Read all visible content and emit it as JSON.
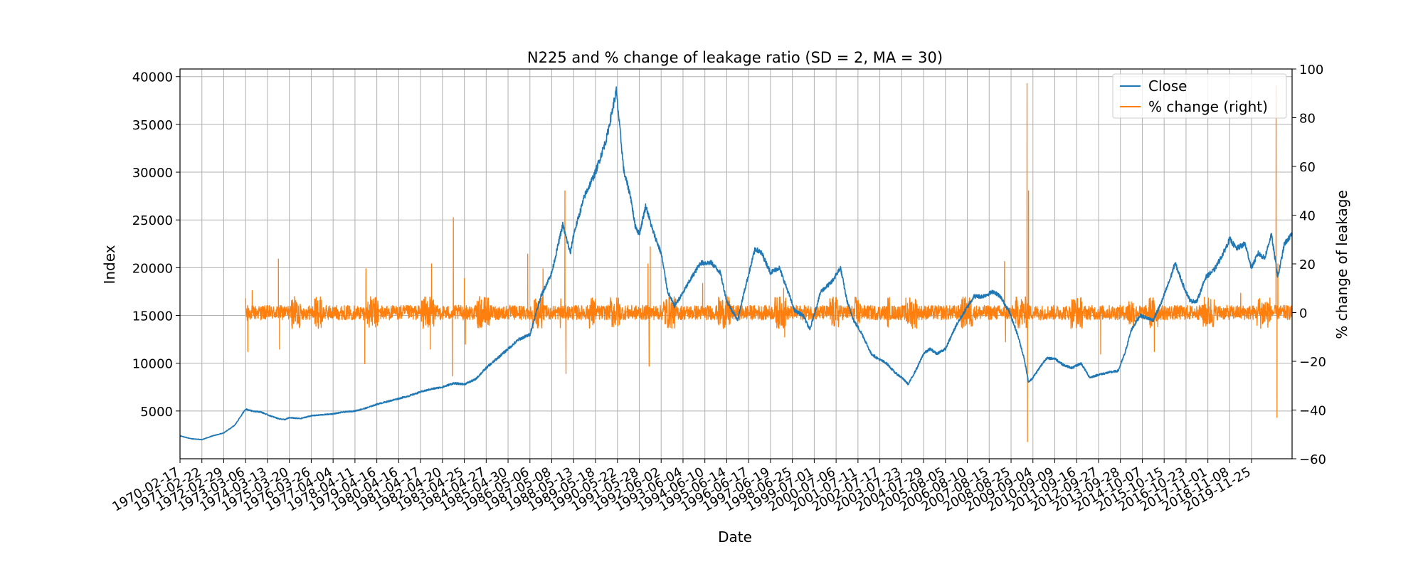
{
  "chart_data": {
    "type": "line",
    "title": "N225 and % change of leakage ratio (SD = 2, MA = 30)",
    "xlabel": "Date",
    "ylabel_left": "Index",
    "ylabel_right": "% change of leakage",
    "grid": true,
    "legend_position": "top-right",
    "x_tick_labels": [
      "1970-02-17",
      "1971-02-22",
      "1972-02-29",
      "1973-03-06",
      "1974-03-13",
      "1975-03-20",
      "1976-03-26",
      "1977-04-04",
      "1978-04-11",
      "1979-04-16",
      "1980-04-16",
      "1981-04-17",
      "1982-04-20",
      "1983-04-25",
      "1984-04-27",
      "1985-04-30",
      "1986-05-06",
      "1987-05-08",
      "1988-05-13",
      "1989-05-18",
      "1990-05-22",
      "1991-05-28",
      "1992-06-02",
      "1993-06-04",
      "1994-06-10",
      "1995-06-14",
      "1996-06-17",
      "1997-06-19",
      "1998-06-25",
      "1999-07-01",
      "2000-07-06",
      "2001-07-11",
      "2002-07-17",
      "2003-07-23",
      "2004-07-29",
      "2005-08-05",
      "2006-08-10",
      "2007-08-15",
      "2008-08-25",
      "2009-09-04",
      "2010-09-09",
      "2011-09-16",
      "2012-09-27",
      "2013-09-28",
      "2014-10-07",
      "2015-10-15",
      "2016-10-23",
      "2017-11-01",
      "2018-11-08",
      "2019-11-25"
    ],
    "y_left_ticks": [
      "5000",
      "10000",
      "15000",
      "20000",
      "25000",
      "30000",
      "35000",
      "40000"
    ],
    "y_right_ticks": [
      "−60",
      "−40",
      "−20",
      "0",
      "20",
      "40",
      "60",
      "80",
      "100"
    ],
    "ylim_left": [
      0,
      40800
    ],
    "ylim_right": [
      -60,
      100
    ],
    "xlim": [
      1970.0,
      2020.85
    ],
    "series": [
      {
        "name": "Close",
        "axis": "left",
        "color": "#1f77b4",
        "x": [
          1970.0,
          1970.5,
          1971.0,
          1971.5,
          1972.0,
          1972.5,
          1973.0,
          1973.3,
          1973.7,
          1974.0,
          1974.5,
          1974.8,
          1975.0,
          1975.5,
          1976.0,
          1976.5,
          1977.0,
          1977.5,
          1978.0,
          1978.5,
          1979.0,
          1979.5,
          1980.0,
          1980.5,
          1981.0,
          1981.5,
          1982.0,
          1982.5,
          1983.0,
          1983.5,
          1984.0,
          1984.5,
          1985.0,
          1985.5,
          1986.0,
          1986.5,
          1987.0,
          1987.5,
          1987.85,
          1988.0,
          1988.5,
          1989.0,
          1989.5,
          1989.95,
          1990.3,
          1990.6,
          1990.8,
          1991.0,
          1991.3,
          1991.6,
          1992.0,
          1992.3,
          1992.6,
          1992.9,
          1993.4,
          1993.8,
          1994.3,
          1994.7,
          1995.0,
          1995.5,
          1995.8,
          1996.3,
          1996.6,
          1997.0,
          1997.4,
          1997.8,
          1998.1,
          1998.5,
          1998.8,
          1999.3,
          1999.8,
          2000.2,
          2000.5,
          2000.8,
          2001.2,
          2001.6,
          2001.9,
          2002.3,
          2002.7,
          2003.0,
          2003.3,
          2003.7,
          2004.0,
          2004.3,
          2004.6,
          2005.0,
          2005.5,
          2005.9,
          2006.3,
          2006.7,
          2007.2,
          2007.5,
          2007.9,
          2008.3,
          2008.6,
          2008.8,
          2009.0,
          2009.3,
          2009.6,
          2010.0,
          2010.4,
          2010.8,
          2011.2,
          2011.6,
          2012.0,
          2012.4,
          2012.9,
          2013.2,
          2013.5,
          2013.9,
          2014.5,
          2014.9,
          2015.3,
          2015.5,
          2015.9,
          2016.2,
          2016.5,
          2016.9,
          2017.3,
          2017.7,
          2018.0,
          2018.3,
          2018.7,
          2018.99,
          2019.3,
          2019.6,
          2019.9,
          2020.2,
          2020.5,
          2020.85
        ],
        "y": [
          2400,
          2100,
          2000,
          2400,
          2700,
          3500,
          5200,
          5000,
          4900,
          4600,
          4200,
          4100,
          4300,
          4200,
          4500,
          4600,
          4700,
          4900,
          5000,
          5300,
          5700,
          6000,
          6300,
          6600,
          7000,
          7300,
          7500,
          7900,
          7800,
          8300,
          9500,
          10500,
          11500,
          12500,
          13000,
          17000,
          19500,
          24500,
          21500,
          23500,
          27500,
          30000,
          33500,
          38500,
          30000,
          27500,
          24500,
          23500,
          26500,
          24000,
          21500,
          17500,
          16000,
          17000,
          19000,
          20500,
          20500,
          19500,
          16500,
          14500,
          17500,
          22000,
          21500,
          19500,
          20000,
          17500,
          15500,
          15000,
          13500,
          17500,
          18500,
          20000,
          16500,
          14500,
          13000,
          11000,
          10500,
          10000,
          9000,
          8500,
          7800,
          9500,
          11000,
          11500,
          11000,
          11500,
          14000,
          15500,
          17000,
          17000,
          17500,
          17000,
          15500,
          13000,
          10500,
          8000,
          8500,
          9500,
          10500,
          10500,
          9800,
          9500,
          10000,
          8500,
          8800,
          9000,
          9200,
          11000,
          13500,
          15000,
          14500,
          16500,
          19000,
          20500,
          18000,
          16500,
          16500,
          19000,
          19800,
          21500,
          23000,
          22000,
          22500,
          20000,
          21500,
          21000,
          23500,
          19000,
          22500,
          23500
        ],
        "style": "line"
      },
      {
        "name": "% change (right)",
        "axis": "right",
        "color": "#ff7f0e",
        "start": 1973.0,
        "noise_level": 3,
        "spikes": [
          {
            "x": 1973.3,
            "y": 9
          },
          {
            "x": 1973.1,
            "y": -16
          },
          {
            "x": 1974.5,
            "y": 22
          },
          {
            "x": 1974.55,
            "y": -15
          },
          {
            "x": 1978.5,
            "y": 18
          },
          {
            "x": 1978.45,
            "y": -21
          },
          {
            "x": 1981.5,
            "y": 20
          },
          {
            "x": 1981.45,
            "y": -15
          },
          {
            "x": 1982.5,
            "y": 39
          },
          {
            "x": 1982.45,
            "y": -26
          },
          {
            "x": 1983.0,
            "y": 14
          },
          {
            "x": 1983.05,
            "y": -13
          },
          {
            "x": 1985.9,
            "y": 24
          },
          {
            "x": 1986.6,
            "y": 18
          },
          {
            "x": 1987.6,
            "y": 50
          },
          {
            "x": 1987.65,
            "y": -25
          },
          {
            "x": 1991.4,
            "y": 20
          },
          {
            "x": 1991.45,
            "y": -22
          },
          {
            "x": 1991.5,
            "y": 27
          },
          {
            "x": 1993.9,
            "y": 12
          },
          {
            "x": 1997.6,
            "y": 10
          },
          {
            "x": 1997.65,
            "y": -10
          },
          {
            "x": 2007.7,
            "y": 21
          },
          {
            "x": 2007.75,
            "y": -12
          },
          {
            "x": 2008.73,
            "y": 94
          },
          {
            "x": 2008.75,
            "y": -53
          },
          {
            "x": 2008.8,
            "y": 50
          },
          {
            "x": 2012.1,
            "y": -17
          },
          {
            "x": 2014.55,
            "y": -16
          },
          {
            "x": 2018.5,
            "y": 8
          },
          {
            "x": 2020.12,
            "y": 93
          },
          {
            "x": 2020.16,
            "y": -43
          },
          {
            "x": 2020.2,
            "y": 20
          }
        ],
        "style": "noisy-spiky"
      }
    ]
  },
  "legend": [
    {
      "label": "Close",
      "color": "#1f77b4"
    },
    {
      "label": "% change (right)",
      "color": "#ff7f0e"
    }
  ]
}
